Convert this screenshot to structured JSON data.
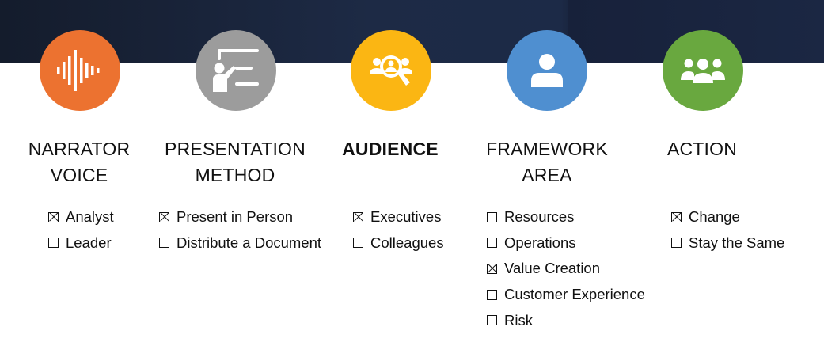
{
  "colors": {
    "banner": "#1b2742",
    "narrator": "#ec7230",
    "presentation": "#9c9c9c",
    "audience": "#fbb613",
    "framework": "#4f8fd0",
    "action": "#69a83f"
  },
  "columns": [
    {
      "id": "narrator",
      "icon": "sound-wave-icon",
      "heading": "NARRATOR\nVOICE",
      "options": [
        {
          "label": "Analyst",
          "checked": true
        },
        {
          "label": "Leader",
          "checked": false
        }
      ]
    },
    {
      "id": "presentation",
      "icon": "presenter-screen-icon",
      "heading": "PRESENTATION\nMETHOD",
      "options": [
        {
          "label": "Present in Person",
          "checked": true
        },
        {
          "label": "Distribute a Document",
          "checked": false
        }
      ]
    },
    {
      "id": "audience",
      "icon": "audience-search-icon",
      "heading": "AUDIENCE",
      "options": [
        {
          "label": "Executives",
          "checked": true
        },
        {
          "label": "Colleagues",
          "checked": false
        }
      ]
    },
    {
      "id": "framework",
      "icon": "person-icon",
      "heading": "FRAMEWORK\nAREA",
      "options": [
        {
          "label": "Resources",
          "checked": false
        },
        {
          "label": "Operations",
          "checked": false
        },
        {
          "label": "Value Creation",
          "checked": true
        },
        {
          "label": "Customer Experience",
          "checked": false
        },
        {
          "label": "Risk",
          "checked": false
        }
      ]
    },
    {
      "id": "action",
      "icon": "group-icon",
      "heading": "ACTION",
      "options": [
        {
          "label": "Change",
          "checked": true
        },
        {
          "label": "Stay the Same",
          "checked": false
        }
      ]
    }
  ]
}
